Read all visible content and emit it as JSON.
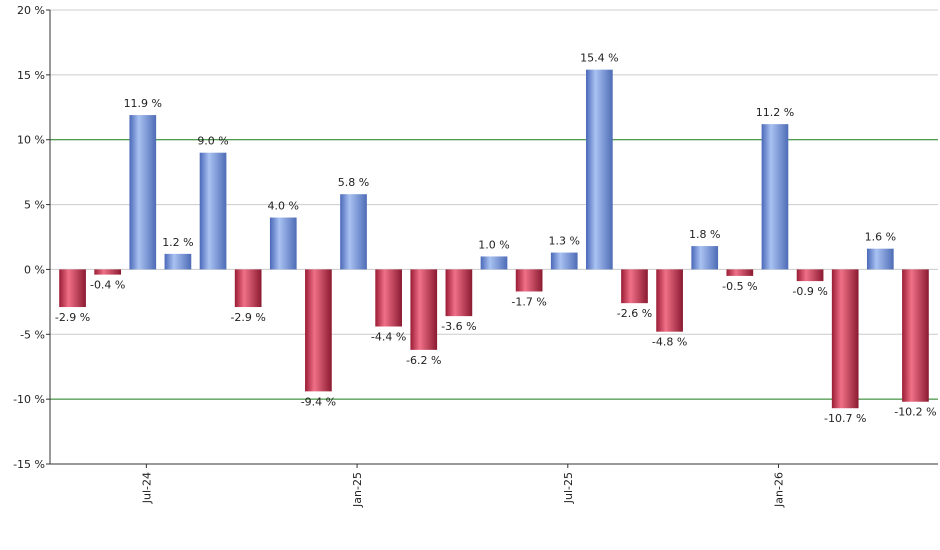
{
  "chart_data": {
    "type": "bar",
    "title": "",
    "xlabel": "",
    "ylabel": "",
    "ylim": [
      -15,
      20
    ],
    "y_ticks": [
      -15,
      -10,
      -5,
      0,
      5,
      10,
      15,
      20
    ],
    "y_tick_suffix": " %",
    "highlight_lines": [
      10,
      -10
    ],
    "grid": true,
    "x_tick_labels": [
      {
        "label": "Jul-24",
        "index": 2
      },
      {
        "label": "Jan-25",
        "index": 8
      },
      {
        "label": "Jul-25",
        "index": 14
      },
      {
        "label": "Jan-26",
        "index": 20
      }
    ],
    "values": [
      -2.9,
      -0.4,
      11.9,
      1.2,
      9.0,
      -2.9,
      4.0,
      -9.4,
      5.8,
      -4.4,
      -6.2,
      -3.6,
      1.0,
      -1.7,
      1.3,
      15.4,
      -2.6,
      -4.8,
      1.8,
      -0.5,
      11.2,
      -0.9,
      -10.7,
      1.6,
      -10.2
    ],
    "labels": [
      "-2.9 %",
      "-0.4 %",
      "11.9 %",
      "1.2 %",
      "9.0 %",
      "-2.9 %",
      "4.0 %",
      "-9.4 %",
      "5.8 %",
      "-4.4 %",
      "-6.2 %",
      "-3.6 %",
      "1.0 %",
      "-1.7 %",
      "1.3 %",
      "15.4 %",
      "-2.6 %",
      "-4.8 %",
      "1.8 %",
      "-0.5 %",
      "11.2 %",
      "-0.9 %",
      "-10.7 %",
      "1.6 %",
      "-10.2 %"
    ],
    "colors": {
      "positive": "#7f9fe0",
      "negative": "#c8324f",
      "grid": "#cccccc",
      "highlight": "#1a7a1a",
      "axis": "#333333"
    }
  }
}
